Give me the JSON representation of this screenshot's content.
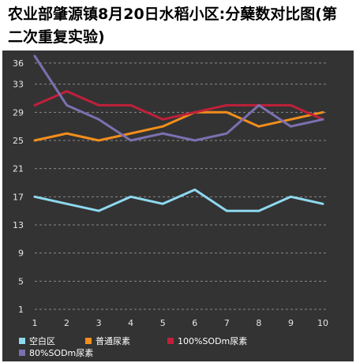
{
  "chart_data": {
    "type": "line",
    "title": "农业部肇源镇8月20日水稻小区:分蘖数对比图(第二次重复实验)",
    "xlabel": "",
    "ylabel": "",
    "x": [
      1,
      2,
      3,
      4,
      5,
      6,
      7,
      8,
      9,
      10
    ],
    "x_tick_labels": [
      "1",
      "2",
      "3",
      "4",
      "5",
      "6",
      "7",
      "8",
      "9",
      "10"
    ],
    "y_ticks": [
      1,
      5,
      9,
      13,
      17,
      21,
      25,
      29,
      33,
      36
    ],
    "y_tick_labels": [
      "1",
      "5",
      "9",
      "13",
      "17",
      "21",
      "25",
      "29",
      "33",
      "36"
    ],
    "ylim": [
      1,
      37
    ],
    "grid": "horizontal dashed",
    "legend_position": "bottom",
    "series": [
      {
        "name": "空白区",
        "color": "#8ed8f0",
        "values": [
          17,
          16,
          15,
          17,
          16,
          18,
          15,
          15,
          17,
          16
        ]
      },
      {
        "name": "普通尿素",
        "color": "#f28e1c",
        "values": [
          25,
          26,
          25,
          26,
          27,
          29,
          29,
          27,
          28,
          29
        ]
      },
      {
        "name": "100%SODm尿素",
        "color": "#c0203a",
        "values": [
          30,
          32,
          30,
          30,
          28,
          29,
          30,
          30,
          30,
          28
        ]
      },
      {
        "name": "80%SODm尿素",
        "color": "#7b70b0",
        "values": [
          37,
          30,
          28,
          25,
          26,
          25,
          26,
          30,
          27,
          28
        ]
      }
    ]
  }
}
